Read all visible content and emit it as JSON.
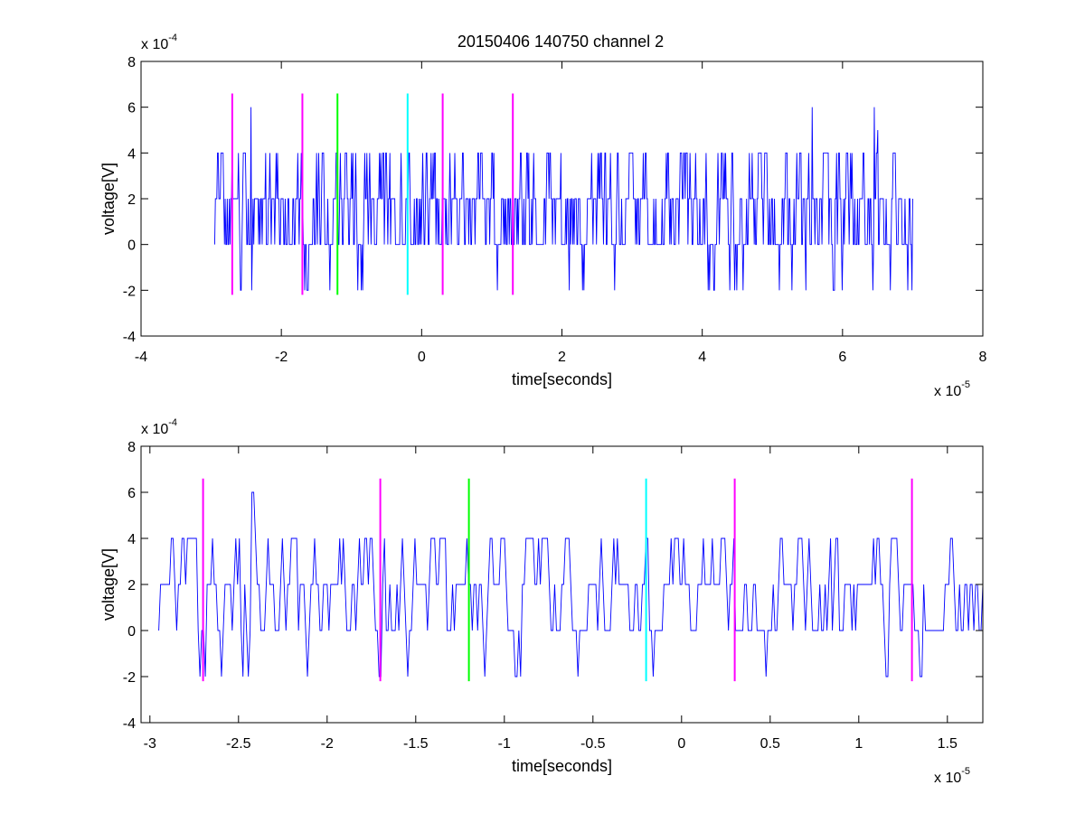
{
  "chart_data": [
    {
      "type": "line",
      "title": "20150406 140750 channel 2",
      "xlabel": "time[seconds]",
      "ylabel": "voltage[V]",
      "x_multiplier": {
        "base": "x 10",
        "exponent": "-5"
      },
      "y_multiplier": {
        "base": "x 10",
        "exponent": "-4"
      },
      "xlim": [
        -4,
        8
      ],
      "ylim": [
        -4,
        8
      ],
      "x_ticks": [
        "-4",
        "-2",
        "0",
        "2",
        "4",
        "6",
        "8"
      ],
      "y_ticks": [
        "-4",
        "-2",
        "0",
        "2",
        "4",
        "6",
        "8"
      ],
      "grid": false,
      "legend": "none",
      "signal": {
        "color": "#0000ff",
        "x_start": -2.95,
        "x_end": 7.0,
        "approx_samples": 1000,
        "levels": [
          -2,
          0,
          2,
          4,
          6
        ],
        "peaks": [
          {
            "x": -2.43,
            "y": 6
          },
          {
            "x": 5.57,
            "y": 6
          },
          {
            "x": 6.45,
            "y": 6
          },
          {
            "x": 6.5,
            "y": 5
          }
        ]
      },
      "markers": [
        {
          "x": -2.7,
          "color": "#ff00ff",
          "y_range": [
            -2.2,
            6.6
          ]
        },
        {
          "x": -1.7,
          "color": "#ff00ff",
          "y_range": [
            -2.2,
            6.6
          ]
        },
        {
          "x": -1.2,
          "color": "#00ff00",
          "y_range": [
            -2.2,
            6.6
          ]
        },
        {
          "x": -0.2,
          "color": "#00ffff",
          "y_range": [
            -2.2,
            6.6
          ]
        },
        {
          "x": 0.3,
          "color": "#ff00ff",
          "y_range": [
            -2.2,
            6.6
          ]
        },
        {
          "x": 1.3,
          "color": "#ff00ff",
          "y_range": [
            -2.2,
            6.6
          ]
        }
      ]
    },
    {
      "type": "line",
      "title": "",
      "xlabel": "time[seconds]",
      "ylabel": "voltage[V]",
      "x_multiplier": {
        "base": "x 10",
        "exponent": "-5"
      },
      "y_multiplier": {
        "base": "x 10",
        "exponent": "-4"
      },
      "xlim": [
        -3.05,
        1.7
      ],
      "ylim": [
        -4,
        8
      ],
      "x_ticks": [
        "-3",
        "-2.5",
        "-2",
        "-1.5",
        "-1",
        "-0.5",
        "0",
        "0.5",
        "1",
        "1.5"
      ],
      "x_tick_values": [
        -3,
        -2.5,
        -2,
        -1.5,
        -1,
        -0.5,
        0,
        0.5,
        1,
        1.5
      ],
      "y_ticks": [
        "-4",
        "-2",
        "0",
        "2",
        "4",
        "6",
        "8"
      ],
      "grid": false,
      "legend": "none",
      "signal": {
        "color": "#0000ff",
        "x_start": -2.95,
        "x_end": 1.7,
        "approx_samples": 460,
        "levels": [
          -2,
          0,
          2,
          4,
          6
        ],
        "peaks": [
          {
            "x": -2.42,
            "y": 6
          }
        ]
      },
      "markers": [
        {
          "x": -2.7,
          "color": "#ff00ff",
          "y_range": [
            -2.2,
            6.6
          ]
        },
        {
          "x": -1.7,
          "color": "#ff00ff",
          "y_range": [
            -2.2,
            6.6
          ]
        },
        {
          "x": -1.2,
          "color": "#00ff00",
          "y_range": [
            -2.2,
            6.6
          ]
        },
        {
          "x": -0.2,
          "color": "#00ffff",
          "y_range": [
            -2.2,
            6.6
          ]
        },
        {
          "x": 0.3,
          "color": "#ff00ff",
          "y_range": [
            -2.2,
            6.6
          ]
        },
        {
          "x": 1.3,
          "color": "#ff00ff",
          "y_range": [
            -2.2,
            6.6
          ]
        }
      ]
    }
  ]
}
